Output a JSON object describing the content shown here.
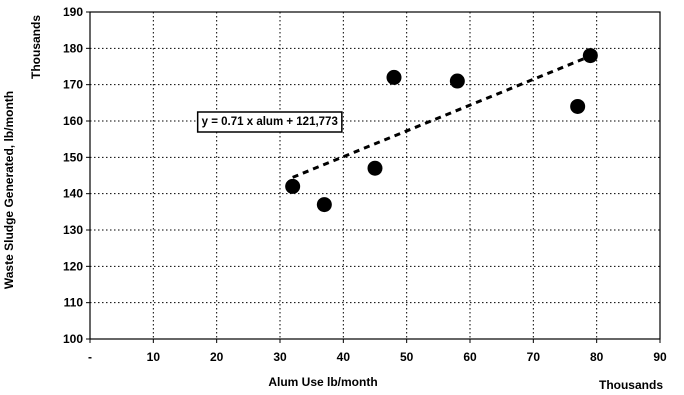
{
  "chart_data": {
    "type": "scatter",
    "xlabel": "Alum Use lb/month",
    "xunit": "Thousands",
    "ylabel": "Waste Sludge Generated, lb/month",
    "yunit": "Thousands",
    "xlim": [
      0,
      90
    ],
    "ylim": [
      100,
      190
    ],
    "x_ticks": [
      0,
      10,
      20,
      30,
      40,
      50,
      60,
      70,
      80,
      90
    ],
    "x_tick_labels": [
      "-",
      "10",
      "20",
      "30",
      "40",
      "50",
      "60",
      "70",
      "80",
      "90"
    ],
    "y_ticks": [
      100,
      110,
      120,
      130,
      140,
      150,
      160,
      170,
      180,
      190
    ],
    "grid": true,
    "legend": "none",
    "series": [
      {
        "points": [
          {
            "x": 32,
            "y": 142
          },
          {
            "x": 37,
            "y": 137
          },
          {
            "x": 45,
            "y": 147
          },
          {
            "x": 48,
            "y": 172
          },
          {
            "x": 58,
            "y": 171
          },
          {
            "x": 77,
            "y": 164
          },
          {
            "x": 79,
            "y": 178
          }
        ]
      }
    ],
    "trendline": {
      "style": "dashed",
      "slope": 0.71,
      "intercept": 121.773,
      "x_range": [
        32,
        79
      ]
    },
    "annotations": [
      {
        "text": "y = 0.71 x alum + 121,773",
        "anchor": {
          "x": 17,
          "y": 160
        }
      }
    ]
  },
  "colors": {
    "marker": "#000000",
    "grid": "#000000",
    "axis": "#000000"
  }
}
